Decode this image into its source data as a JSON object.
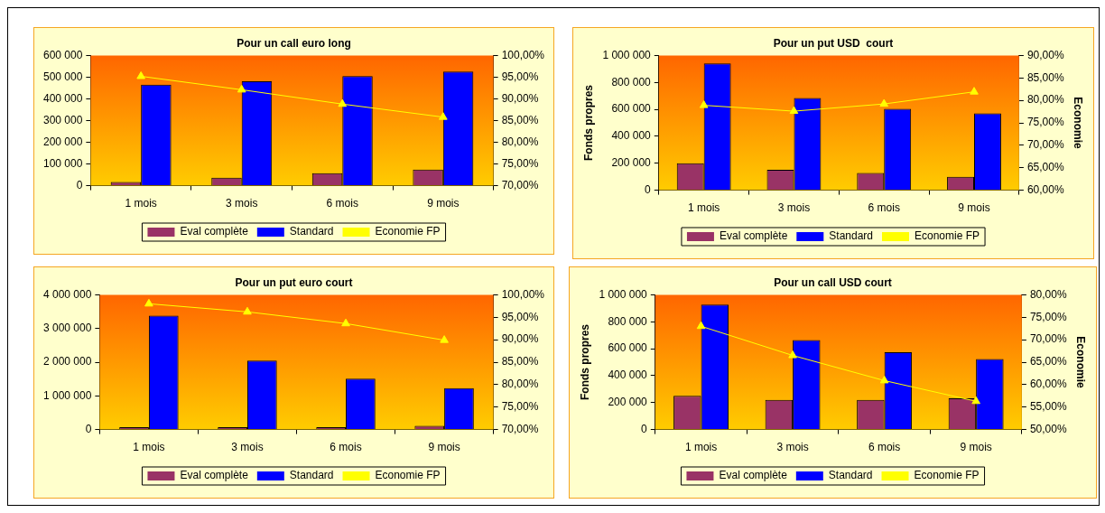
{
  "chart_data": [
    {
      "type": "bar",
      "title": "Pour un call euro long",
      "categories": [
        "1 mois",
        "3 mois",
        "6 mois",
        "9 mois"
      ],
      "series": [
        {
          "name": "Eval complète",
          "color": "#993366",
          "values": [
            17000,
            37000,
            58000,
            74000
          ]
        },
        {
          "name": "Standard",
          "color": "#0000ff",
          "values": [
            465000,
            481000,
            505000,
            526000
          ]
        },
        {
          "name": "Economie FP",
          "type": "line",
          "axis": "y2",
          "color": "#ffff00",
          "values": [
            95.2,
            92.1,
            88.8,
            85.8
          ]
        }
      ],
      "ylim": [
        0,
        600000
      ],
      "yticks": [
        {
          "value": 0,
          "label": "0"
        },
        {
          "value": 100000,
          "label": "100 000"
        },
        {
          "value": 200000,
          "label": "200 000"
        },
        {
          "value": 300000,
          "label": "300 000"
        },
        {
          "value": 400000,
          "label": "400 000"
        },
        {
          "value": 500000,
          "label": "500 000"
        },
        {
          "value": 600000,
          "label": "600 000"
        }
      ],
      "y2lim": [
        70,
        100
      ],
      "y2ticks": [
        {
          "value": 70,
          "label": "70,00%"
        },
        {
          "value": 75,
          "label": "75,00%"
        },
        {
          "value": 80,
          "label": "80,00%"
        },
        {
          "value": 85,
          "label": "85,00%"
        },
        {
          "value": 90,
          "label": "90,00%"
        },
        {
          "value": 95,
          "label": "95,00%"
        },
        {
          "value": 100,
          "label": "100,00%"
        }
      ],
      "legend": "bottom",
      "marker": "triangle"
    },
    {
      "type": "bar",
      "title": "Pour un put USD  court",
      "ylabel": "Fonds propres",
      "y2label": "Economie",
      "categories": [
        "1 mois",
        "3 mois",
        "6 mois",
        "9 mois"
      ],
      "series": [
        {
          "name": "Eval complète",
          "color": "#993366",
          "values": [
            200000,
            152000,
            128000,
            99000
          ]
        },
        {
          "name": "Standard",
          "color": "#0000ff",
          "values": [
            941000,
            684000,
            604000,
            570000
          ]
        },
        {
          "name": "Economie FP",
          "type": "line",
          "axis": "y2",
          "color": "#ffff00",
          "values": [
            78.9,
            77.6,
            79.2,
            81.9
          ]
        }
      ],
      "ylim": [
        0,
        1000000
      ],
      "yticks": [
        {
          "value": 0,
          "label": "0"
        },
        {
          "value": 200000,
          "label": "200 000"
        },
        {
          "value": 400000,
          "label": "400 000"
        },
        {
          "value": 600000,
          "label": "600 000"
        },
        {
          "value": 800000,
          "label": "800 000"
        },
        {
          "value": 1000000,
          "label": "1 000 000"
        }
      ],
      "y2lim": [
        60,
        90
      ],
      "y2ticks": [
        {
          "value": 60,
          "label": "60,00%"
        },
        {
          "value": 65,
          "label": "65,00%"
        },
        {
          "value": 70,
          "label": "70,00%"
        },
        {
          "value": 75,
          "label": "75,00%"
        },
        {
          "value": 80,
          "label": "80,00%"
        },
        {
          "value": 85,
          "label": "85,00%"
        },
        {
          "value": 90,
          "label": "90,00%"
        }
      ],
      "legend": "bottom",
      "marker": "triangle"
    },
    {
      "type": "bar",
      "title": "Pour un put euro court",
      "categories": [
        "1 mois",
        "3 mois",
        "6 mois",
        "9 mois"
      ],
      "series": [
        {
          "name": "Eval complète",
          "color": "#993366",
          "values": [
            70000,
            70000,
            70000,
            110000
          ]
        },
        {
          "name": "Standard",
          "color": "#0000ff",
          "values": [
            3380000,
            2050000,
            1510000,
            1230000
          ]
        },
        {
          "name": "Economie FP",
          "type": "line",
          "axis": "y2",
          "color": "#ffff00",
          "values": [
            98.0,
            96.2,
            93.6,
            89.9
          ]
        }
      ],
      "ylim": [
        0,
        4000000
      ],
      "yticks": [
        {
          "value": 0,
          "label": "0"
        },
        {
          "value": 1000000,
          "label": "1 000 000"
        },
        {
          "value": 2000000,
          "label": "2 000 000"
        },
        {
          "value": 3000000,
          "label": "3 000 000"
        },
        {
          "value": 4000000,
          "label": "4 000 000"
        }
      ],
      "y2lim": [
        70,
        100
      ],
      "y2ticks": [
        {
          "value": 70,
          "label": "70,00%"
        },
        {
          "value": 75,
          "label": "75,00%"
        },
        {
          "value": 80,
          "label": "80,00%"
        },
        {
          "value": 85,
          "label": "85,00%"
        },
        {
          "value": 90,
          "label": "90,00%"
        },
        {
          "value": 95,
          "label": "95,00%"
        },
        {
          "value": 100,
          "label": "100,00%"
        }
      ],
      "legend": "bottom",
      "marker": "triangle"
    },
    {
      "type": "bar",
      "title": "Pour un call USD court",
      "ylabel": "Fonds propres",
      "y2label": "Economie",
      "categories": [
        "1 mois",
        "3 mois",
        "6 mois",
        "9 mois"
      ],
      "series": [
        {
          "name": "Eval complète",
          "color": "#993366",
          "values": [
            250000,
            220000,
            220000,
            232000
          ]
        },
        {
          "name": "Standard",
          "color": "#0000ff",
          "values": [
            927000,
            665000,
            573000,
            524000
          ]
        },
        {
          "name": "Economie FP",
          "type": "line",
          "axis": "y2",
          "color": "#ffff00",
          "values": [
            73.0,
            66.5,
            60.9,
            56.3
          ]
        }
      ],
      "ylim": [
        0,
        1000000
      ],
      "yticks": [
        {
          "value": 0,
          "label": "0"
        },
        {
          "value": 200000,
          "label": "200 000"
        },
        {
          "value": 400000,
          "label": "400 000"
        },
        {
          "value": 600000,
          "label": "600 000"
        },
        {
          "value": 800000,
          "label": "800 000"
        },
        {
          "value": 1000000,
          "label": "1 000 000"
        }
      ],
      "y2lim": [
        50,
        80
      ],
      "y2ticks": [
        {
          "value": 50,
          "label": "50,00%"
        },
        {
          "value": 55,
          "label": "55,00%"
        },
        {
          "value": 60,
          "label": "60,00%"
        },
        {
          "value": 65,
          "label": "65,00%"
        },
        {
          "value": 70,
          "label": "70,00%"
        },
        {
          "value": 75,
          "label": "75,00%"
        },
        {
          "value": 80,
          "label": "80,00%"
        }
      ],
      "legend": "bottom",
      "marker": "triangle"
    }
  ]
}
